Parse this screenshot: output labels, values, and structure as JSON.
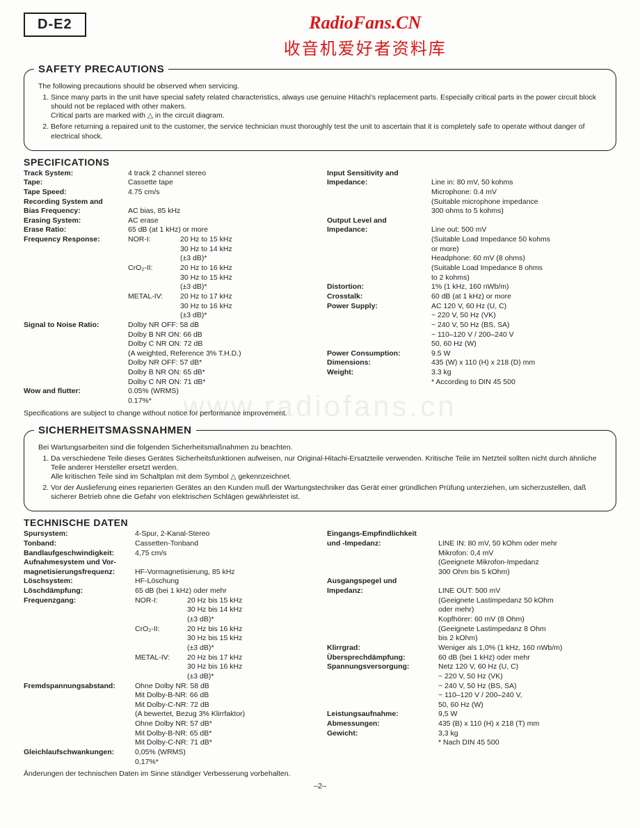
{
  "header": {
    "model": "D-E2",
    "wm1": "RadioFans.CN",
    "wm2": "收音机爱好者资料库",
    "bg_watermark": "www.radiofans.cn"
  },
  "safety_en": {
    "legend": "SAFETY PRECAUTIONS",
    "intro": "The following precautions should be observed when servicing.",
    "items": [
      "Since many parts in the unit have special safety related characteristics, always use genuine Hitachi's replacement parts. Especially critical parts in the power circuit block should not be replaced with other makers.\nCritical parts are marked with △ in the circuit diagram.",
      "Before returning a repaired unit to the customer, the service technician must thoroughly test the unit to ascertain that it is completely safe to operate without danger of electrical shock."
    ]
  },
  "specs_en": {
    "title": "SPECIFICATIONS",
    "left": [
      {
        "label": "Track System:",
        "val": "4 track 2 channel stereo"
      },
      {
        "label": "Tape:",
        "val": "Cassette tape"
      },
      {
        "label": "Tape Speed:",
        "val": "4.75 cm/s"
      },
      {
        "label": "Recording System and",
        "val": ""
      },
      {
        "label": "  Bias Frequency:",
        "val": "AC bias, 85 kHz"
      },
      {
        "label": "Erasing System:",
        "val": "AC erase"
      },
      {
        "label": "Erase Ratio:",
        "val": "65 dB (at 1 kHz) or more"
      },
      {
        "label": "Frequency Response:",
        "sub": "NOR-I:",
        "val": "20 Hz to 15 kHz"
      },
      {
        "label": "",
        "sub": "",
        "val": "30 Hz to 14 kHz"
      },
      {
        "label": "",
        "sub": "",
        "val": "(±3 dB)*"
      },
      {
        "label": "",
        "sub": "CrO₂-II:",
        "val": "20 Hz to 16 kHz"
      },
      {
        "label": "",
        "sub": "",
        "val": "30 Hz to 15 kHz"
      },
      {
        "label": "",
        "sub": "",
        "val": "(±3 dB)*"
      },
      {
        "label": "",
        "sub": "METAL-IV:",
        "val": "20 Hz to 17 kHz"
      },
      {
        "label": "",
        "sub": "",
        "val": "30 Hz to 16 kHz"
      },
      {
        "label": "",
        "sub": "",
        "val": "(±3 dB)*"
      },
      {
        "label": "Signal to Noise Ratio:",
        "val": "Dolby NR OFF: 58 dB"
      },
      {
        "label": "",
        "val": "Dolby B NR ON: 66 dB"
      },
      {
        "label": "",
        "val": "Dolby C NR ON: 72 dB"
      },
      {
        "label": "",
        "val": "(A weighted, Reference 3% T.H.D.)"
      },
      {
        "label": "",
        "val": "Dolby NR OFF: 57 dB*"
      },
      {
        "label": "",
        "val": "Dolby B NR ON: 65 dB*"
      },
      {
        "label": "",
        "val": "Dolby C NR ON: 71 dB*"
      },
      {
        "label": "Wow and flutter:",
        "val": "0.05% (WRMS)"
      },
      {
        "label": "",
        "val": "0.17%*"
      }
    ],
    "right": [
      {
        "label": "Input Sensitivity and",
        "val": ""
      },
      {
        "label": "  Impedance:",
        "val": "Line in: 80 mV, 50 kohms"
      },
      {
        "label": "",
        "val": "Microphone: 0.4 mV"
      },
      {
        "label": "",
        "val": "(Suitable microphone impedance"
      },
      {
        "label": "",
        "val": "300 ohms to 5 kohms)"
      },
      {
        "label": "Output Level and",
        "val": ""
      },
      {
        "label": "  Impedance:",
        "val": "Line out: 500 mV"
      },
      {
        "label": "",
        "val": "(Suitable Load Impedance 50 kohms"
      },
      {
        "label": "",
        "val": "or more)"
      },
      {
        "label": "",
        "val": "Headphone: 60 mV (8 ohms)"
      },
      {
        "label": "",
        "val": "(Suitable Load Impedance 8 ohms"
      },
      {
        "label": "",
        "val": "to 2 kohms)"
      },
      {
        "label": "Distortion:",
        "val": "1% (1 kHz, 160 nWb/m)"
      },
      {
        "label": "Crosstalk:",
        "val": "60 dB (at 1 kHz) or more"
      },
      {
        "label": "Power Supply:",
        "val": "AC 120 V, 60 Hz (U, C)"
      },
      {
        "label": "",
        "val": "~ 220 V, 50 Hz (VK)"
      },
      {
        "label": "",
        "val": "~ 240 V, 50 Hz (BS, SA)"
      },
      {
        "label": "",
        "val": "~ 110–120 V / 200–240 V"
      },
      {
        "label": "",
        "val": "   50, 60 Hz (W)"
      },
      {
        "label": "Power Consumption:",
        "val": "9.5 W"
      },
      {
        "label": "Dimensions:",
        "val": "435 (W) x 110 (H) x 218 (D) mm"
      },
      {
        "label": "Weight:",
        "val": "3.3 kg"
      },
      {
        "label": "",
        "val": ""
      },
      {
        "label": "",
        "val": "* According to DIN 45 500"
      }
    ],
    "footer": "Specifications are subject to change without notice for performance improvement."
  },
  "safety_de": {
    "legend": "SICHERHEITSMASSNAHMEN",
    "intro": "Bei Wartungsarbeiten sind die folgenden Sicherheitsmaßnahmen zu beachten.",
    "items": [
      "Da verschiedene Teile dieses Gerätes Sicherheitsfunktionen aufweisen, nur Original-Hitachi-Ersatzteile verwenden. Kritische Teile im Netzteil sollten nicht durch ähnliche Teile anderer Hersteller ersetzt werden.\nAlle kritischen Teile sind im Schaltplan mit dem Symbol  △  gekennzeichnet.",
      "Vor der Auslieferung eines reparierten Gerätes an den Kunden muß der Wartungstechniker das Gerät einer gründlichen Prüfung unterziehen, um sicherzustellen, daß sicherer Betrieb ohne die Gefahr von elektrischen Schlägen gewährleistet ist."
    ]
  },
  "specs_de": {
    "title": "TECHNISCHE DATEN",
    "left": [
      {
        "label": "Spursystem:",
        "val": "4-Spur, 2-Kanal-Stereo"
      },
      {
        "label": "Tonband:",
        "val": "Cassetten-Tonband"
      },
      {
        "label": "Bandlaufgeschwindigkeit:",
        "val": "4,75 cm/s"
      },
      {
        "label": "Aufnahmesystem und Vor-",
        "val": ""
      },
      {
        "label": " magnetisierungsfrequenz:",
        "val": "HF-Vormagnetisierung, 85 kHz"
      },
      {
        "label": "Löschsystem:",
        "val": "HF-Löschung"
      },
      {
        "label": "Löschdämpfung:",
        "val": "65 dB (bei 1 kHz) oder mehr"
      },
      {
        "label": "Frequenzgang:",
        "sub": "NOR-I:",
        "val": "20 Hz bis 15 kHz"
      },
      {
        "label": "",
        "sub": "",
        "val": "30 Hz bis 14 kHz"
      },
      {
        "label": "",
        "sub": "",
        "val": "(±3 dB)*"
      },
      {
        "label": "",
        "sub": "CrO₂-II:",
        "val": "20 Hz bis 16 kHz"
      },
      {
        "label": "",
        "sub": "",
        "val": "30 Hz bis 15 kHz"
      },
      {
        "label": "",
        "sub": "",
        "val": "(±3 dB)*"
      },
      {
        "label": "",
        "sub": "METAL-IV:",
        "val": "20 Hz bis 17 kHz"
      },
      {
        "label": "",
        "sub": "",
        "val": "30 Hz bis 16 kHz"
      },
      {
        "label": "",
        "sub": "",
        "val": "(±3 dB)*"
      },
      {
        "label": "Fremdspannungsabstand:",
        "val": "Ohne Dolby NR: 58 dB"
      },
      {
        "label": "",
        "val": "Mit Dolby-B-NR: 66 dB"
      },
      {
        "label": "",
        "val": "Mit Dolby-C-NR: 72 dB"
      },
      {
        "label": "",
        "val": "(A bewertet, Bezug 3% Klirrfaktor)"
      },
      {
        "label": "",
        "val": "Ohne Dolby NR: 57 dB*"
      },
      {
        "label": "",
        "val": "Mit Dolby-B-NR: 65 dB*"
      },
      {
        "label": "",
        "val": "Mit Dolby-C-NR: 71 dB*"
      },
      {
        "label": "Gleichlaufschwankungen:",
        "val": "0,05% (WRMS)"
      },
      {
        "label": "",
        "val": "0,17%*"
      }
    ],
    "right": [
      {
        "label": "Eingangs-Empfindlichkeit",
        "val": ""
      },
      {
        "label": "  und -Impedanz:",
        "val": "LINE IN: 80 mV, 50 kOhm oder mehr"
      },
      {
        "label": "",
        "val": "Mikrofon:   0,4 mV"
      },
      {
        "label": "",
        "val": "(Geeignete Mikrofon-Impedanz"
      },
      {
        "label": "",
        "val": "300 Ohm bis 5 kOhm)"
      },
      {
        "label": "Ausgangspegel und",
        "val": ""
      },
      {
        "label": "  Impedanz:",
        "val": "LINE OUT: 500 mV"
      },
      {
        "label": "",
        "val": "(Geeignete Lastimpedanz 50 kOhm"
      },
      {
        "label": "",
        "val": "oder mehr)"
      },
      {
        "label": "",
        "val": "Kopfhörer: 60 mV (8 Ohm)"
      },
      {
        "label": "",
        "val": "(Geeignete Lastimpedanz 8 Ohm"
      },
      {
        "label": "",
        "val": "bis 2 kOhm)"
      },
      {
        "label": "Klirrgrad:",
        "val": "Weniger als 1,0% (1 kHz, 160 nWb/m)"
      },
      {
        "label": "Übersprechdämpfung:",
        "val": "60 dB (bei 1 kHz) oder mehr"
      },
      {
        "label": "Spannungsversorgung:",
        "val": "Netz 120 V, 60 Hz (U, C)"
      },
      {
        "label": "",
        "val": "~ 220 V, 50 Hz (VK)"
      },
      {
        "label": "",
        "val": "~ 240 V, 50 Hz (BS, SA)"
      },
      {
        "label": "",
        "val": "~ 110–120 V / 200–240 V,"
      },
      {
        "label": "",
        "val": "   50, 60 Hz (W)"
      },
      {
        "label": "Leistungsaufnahme:",
        "val": "9,5 W"
      },
      {
        "label": "Abmessungen:",
        "val": "435 (B) x 110 (H) x 218 (T) mm"
      },
      {
        "label": "Gewicht:",
        "val": "3,3 kg"
      },
      {
        "label": "",
        "val": ""
      },
      {
        "label": "",
        "val": "* Nach DIN 45 500"
      }
    ],
    "footer": "Änderungen der technischen Daten im Sinne ständiger Verbesserung vorbehalten."
  },
  "page_num": "–2–"
}
